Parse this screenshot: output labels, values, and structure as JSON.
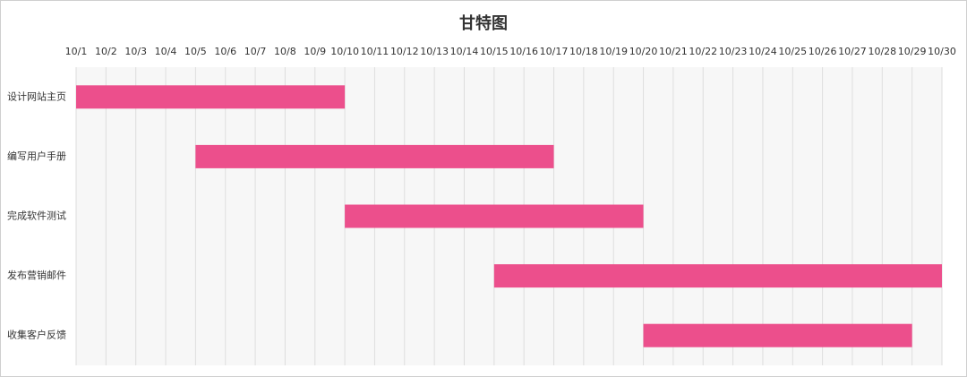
{
  "chart_data": {
    "type": "gantt",
    "title": "甘特图",
    "categories": [
      "设计网站主页",
      "编写用户手册",
      "完成软件测试",
      "发布营销邮件",
      "收集客户反馈"
    ],
    "starts": [
      1,
      5,
      10,
      15,
      20
    ],
    "ends": [
      10,
      17,
      20,
      30,
      29
    ],
    "color": "#ec4f8c",
    "xlim": [
      1,
      30
    ],
    "xticks": [
      {
        "value": 1,
        "label": "10/1"
      },
      {
        "value": 2,
        "label": "10/2"
      },
      {
        "value": 3,
        "label": "10/3"
      },
      {
        "value": 4,
        "label": "10/4"
      },
      {
        "value": 5,
        "label": "10/5"
      },
      {
        "value": 6,
        "label": "10/6"
      },
      {
        "value": 7,
        "label": "10/7"
      },
      {
        "value": 8,
        "label": "10/8"
      },
      {
        "value": 9,
        "label": "10/9"
      },
      {
        "value": 10,
        "label": "10/10"
      },
      {
        "value": 11,
        "label": "10/11"
      },
      {
        "value": 12,
        "label": "10/12"
      },
      {
        "value": 13,
        "label": "10/13"
      },
      {
        "value": 14,
        "label": "10/14"
      },
      {
        "value": 15,
        "label": "10/15"
      },
      {
        "value": 16,
        "label": "10/16"
      },
      {
        "value": 17,
        "label": "10/17"
      },
      {
        "value": 18,
        "label": "10/18"
      },
      {
        "value": 19,
        "label": "10/19"
      },
      {
        "value": 20,
        "label": "10/20"
      },
      {
        "value": 21,
        "label": "10/21"
      },
      {
        "value": 22,
        "label": "10/22"
      },
      {
        "value": 23,
        "label": "10/23"
      },
      {
        "value": 24,
        "label": "10/24"
      },
      {
        "value": 25,
        "label": "10/25"
      },
      {
        "value": 26,
        "label": "10/26"
      },
      {
        "value": 27,
        "label": "10/27"
      },
      {
        "value": 28,
        "label": "10/28"
      },
      {
        "value": 29,
        "label": "10/29"
      },
      {
        "value": 30,
        "label": "10/30"
      }
    ],
    "grid": true
  }
}
